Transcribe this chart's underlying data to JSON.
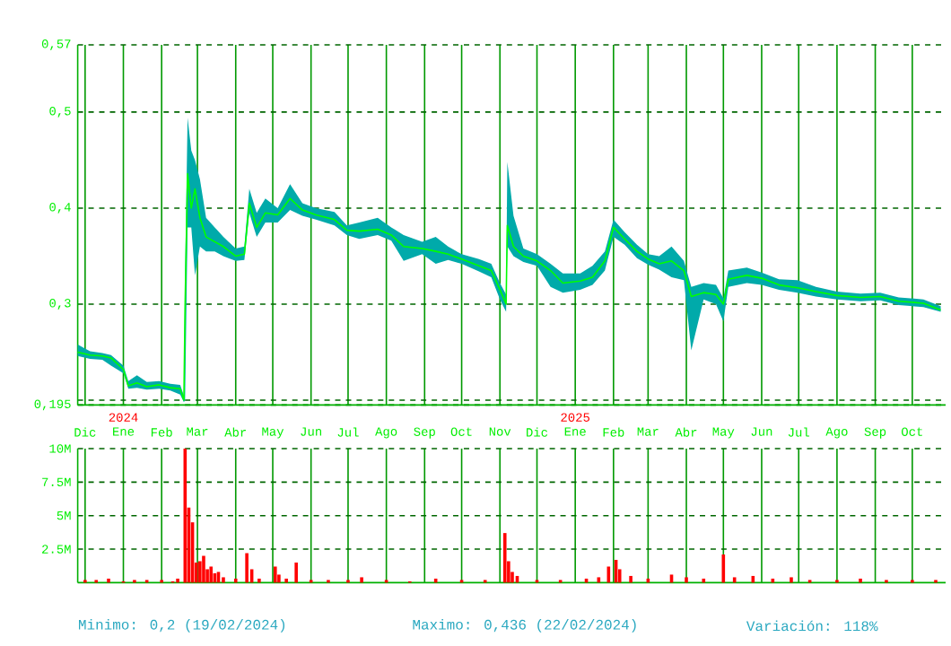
{
  "chart_data": [
    {
      "type": "line",
      "xlim": [
        "2023-11-25",
        "2025-10-28"
      ],
      "ylim": [
        0.195,
        0.57
      ],
      "xticks": [
        {
          "value": "2023-12-01",
          "label": "Dic"
        },
        {
          "value": "2024-01-01",
          "label": "Ene"
        },
        {
          "value": "2024-02-01",
          "label": "Feb"
        },
        {
          "value": "2024-03-01",
          "label": "Mar"
        },
        {
          "value": "2024-04-01",
          "label": "Abr"
        },
        {
          "value": "2024-05-01",
          "label": "May"
        },
        {
          "value": "2024-06-01",
          "label": "Jun"
        },
        {
          "value": "2024-07-01",
          "label": "Jul"
        },
        {
          "value": "2024-08-01",
          "label": "Ago"
        },
        {
          "value": "2024-09-01",
          "label": "Sep"
        },
        {
          "value": "2024-10-01",
          "label": "Oct"
        },
        {
          "value": "2024-11-01",
          "label": "Nov"
        },
        {
          "value": "2024-12-01",
          "label": "Dic"
        },
        {
          "value": "2025-01-01",
          "label": "Ene"
        },
        {
          "value": "2025-02-01",
          "label": "Feb"
        },
        {
          "value": "2025-03-01",
          "label": "Mar"
        },
        {
          "value": "2025-04-01",
          "label": "Abr"
        },
        {
          "value": "2025-05-01",
          "label": "May"
        },
        {
          "value": "2025-06-01",
          "label": "Jun"
        },
        {
          "value": "2025-07-01",
          "label": "Jul"
        },
        {
          "value": "2025-08-01",
          "label": "Ago"
        },
        {
          "value": "2025-09-01",
          "label": "Sep"
        },
        {
          "value": "2025-10-01",
          "label": "Oct"
        }
      ],
      "x2lim": [
        "2023-11-25",
        "2025-10-28"
      ],
      "x2ticks": [
        {
          "value": "2024-01-01",
          "label": "2024"
        },
        {
          "value": "2025-01-01",
          "label": "2025"
        }
      ],
      "yticks": [
        {
          "value": 0.195,
          "label": "0,195"
        },
        {
          "value": 0.2,
          "label": null
        },
        {
          "value": 0.3,
          "label": "0,3"
        },
        {
          "value": 0.4,
          "label": "0,4"
        },
        {
          "value": 0.5,
          "label": "0,5"
        },
        {
          "value": 0.57,
          "label": "0,57"
        }
      ],
      "grid": true,
      "x": [
        "2023-11-25",
        "2023-12-05",
        "2023-12-15",
        "2023-12-22",
        "2024-01-01",
        "2024-01-05",
        "2024-01-12",
        "2024-01-20",
        "2024-01-30",
        "2024-02-08",
        "2024-02-16",
        "2024-02-19",
        "2024-02-20",
        "2024-02-22",
        "2024-02-25",
        "2024-02-28",
        "2024-03-03",
        "2024-03-08",
        "2024-03-15",
        "2024-03-22",
        "2024-04-01",
        "2024-04-08",
        "2024-04-12",
        "2024-04-18",
        "2024-04-25",
        "2024-05-05",
        "2024-05-15",
        "2024-05-25",
        "2024-06-05",
        "2024-06-20",
        "2024-06-30",
        "2024-07-10",
        "2024-07-25",
        "2024-08-05",
        "2024-08-15",
        "2024-08-30",
        "2024-09-10",
        "2024-09-20",
        "2024-10-01",
        "2024-10-15",
        "2024-10-25",
        "2024-11-01",
        "2024-11-06",
        "2024-11-07",
        "2024-11-12",
        "2024-11-20",
        "2024-12-01",
        "2024-12-12",
        "2024-12-22",
        "2025-01-05",
        "2025-01-15",
        "2025-01-25",
        "2025-02-01",
        "2025-02-10",
        "2025-02-20",
        "2025-03-01",
        "2025-03-10",
        "2025-03-20",
        "2025-03-30",
        "2025-04-05",
        "2025-04-15",
        "2025-04-25",
        "2025-05-01",
        "2025-05-05",
        "2025-05-20",
        "2025-06-01",
        "2025-06-15",
        "2025-06-30",
        "2025-07-15",
        "2025-08-01",
        "2025-08-20",
        "2025-09-05",
        "2025-09-20",
        "2025-10-10",
        "2025-10-24"
      ],
      "series": [
        {
          "color": "#00ff00",
          "values": [
            0.25,
            0.247,
            0.246,
            0.244,
            0.232,
            0.215,
            0.218,
            0.214,
            0.216,
            0.213,
            0.212,
            0.2,
            0.3,
            0.436,
            0.4,
            0.42,
            0.39,
            0.37,
            0.365,
            0.36,
            0.35,
            0.352,
            0.405,
            0.38,
            0.395,
            0.393,
            0.41,
            0.398,
            0.393,
            0.388,
            0.377,
            0.376,
            0.378,
            0.372,
            0.36,
            0.358,
            0.355,
            0.352,
            0.347,
            0.34,
            0.335,
            0.315,
            0.3,
            0.382,
            0.36,
            0.35,
            0.345,
            0.335,
            0.322,
            0.324,
            0.328,
            0.345,
            0.38,
            0.368,
            0.355,
            0.347,
            0.342,
            0.345,
            0.335,
            0.308,
            0.312,
            0.31,
            0.3,
            0.326,
            0.33,
            0.327,
            0.32,
            0.317,
            0.313,
            0.309,
            0.307,
            0.308,
            0.303,
            0.301,
            0.294
          ],
          "lower": [
            0.246,
            0.243,
            0.242,
            0.236,
            0.228,
            0.212,
            0.213,
            0.211,
            0.212,
            0.21,
            0.206,
            0.198,
            0.2,
            0.38,
            0.38,
            0.33,
            0.36,
            0.355,
            0.355,
            0.35,
            0.345,
            0.346,
            0.395,
            0.37,
            0.385,
            0.385,
            0.398,
            0.392,
            0.388,
            0.382,
            0.372,
            0.368,
            0.372,
            0.366,
            0.345,
            0.352,
            0.342,
            0.346,
            0.342,
            0.334,
            0.328,
            0.305,
            0.292,
            0.36,
            0.35,
            0.344,
            0.34,
            0.318,
            0.312,
            0.315,
            0.32,
            0.335,
            0.37,
            0.362,
            0.348,
            0.341,
            0.336,
            0.328,
            0.325,
            0.252,
            0.305,
            0.3,
            0.282,
            0.318,
            0.322,
            0.32,
            0.315,
            0.312,
            0.308,
            0.305,
            0.303,
            0.304,
            0.299,
            0.297,
            0.292
          ],
          "upper": [
            0.258,
            0.251,
            0.249,
            0.247,
            0.236,
            0.22,
            0.226,
            0.219,
            0.22,
            0.217,
            0.216,
            0.205,
            0.33,
            0.494,
            0.46,
            0.45,
            0.43,
            0.39,
            0.38,
            0.37,
            0.358,
            0.36,
            0.42,
            0.395,
            0.41,
            0.4,
            0.425,
            0.405,
            0.4,
            0.396,
            0.382,
            0.385,
            0.39,
            0.38,
            0.372,
            0.365,
            0.37,
            0.36,
            0.352,
            0.347,
            0.342,
            0.322,
            0.31,
            0.448,
            0.392,
            0.358,
            0.352,
            0.342,
            0.332,
            0.332,
            0.34,
            0.355,
            0.388,
            0.375,
            0.362,
            0.352,
            0.35,
            0.36,
            0.345,
            0.318,
            0.322,
            0.32,
            0.306,
            0.335,
            0.338,
            0.333,
            0.326,
            0.325,
            0.318,
            0.313,
            0.311,
            0.312,
            0.307,
            0.305,
            0.298
          ]
        }
      ]
    },
    {
      "type": "bar",
      "xlim": [
        "2023-11-25",
        "2025-10-28"
      ],
      "ylim": [
        0,
        10000000
      ],
      "xticks": [
        {
          "value": "2023-12-01",
          "label": null
        },
        {
          "value": "2024-01-01",
          "label": null
        },
        {
          "value": "2024-02-01",
          "label": null
        },
        {
          "value": "2024-03-01",
          "label": null
        },
        {
          "value": "2024-04-01",
          "label": null
        },
        {
          "value": "2024-05-01",
          "label": null
        },
        {
          "value": "2024-06-01",
          "label": null
        },
        {
          "value": "2024-07-01",
          "label": null
        },
        {
          "value": "2024-08-01",
          "label": null
        },
        {
          "value": "2024-09-01",
          "label": null
        },
        {
          "value": "2024-10-01",
          "label": null
        },
        {
          "value": "2024-11-01",
          "label": null
        },
        {
          "value": "2024-12-01",
          "label": null
        },
        {
          "value": "2025-01-01",
          "label": null
        },
        {
          "value": "2025-02-01",
          "label": null
        },
        {
          "value": "2025-03-01",
          "label": null
        },
        {
          "value": "2025-04-01",
          "label": null
        },
        {
          "value": "2025-05-01",
          "label": null
        },
        {
          "value": "2025-06-01",
          "label": null
        },
        {
          "value": "2025-07-01",
          "label": null
        },
        {
          "value": "2025-08-01",
          "label": null
        },
        {
          "value": "2025-09-01",
          "label": null
        },
        {
          "value": "2025-10-01",
          "label": null
        }
      ],
      "yticks": [
        {
          "value": 2500000,
          "label": "2.5M"
        },
        {
          "value": 5000000,
          "label": "5M"
        },
        {
          "value": 7500000,
          "label": "7.5M"
        },
        {
          "value": 10000000,
          "label": "10M"
        }
      ],
      "grid": true,
      "tick_labels": "y",
      "annotations": [
        "Minimo: 0,2 (19/02/2024)",
        "Maximo: 0,436 (22/02/2024)",
        "Variación: 118%"
      ],
      "x": [
        "2023-12-01",
        "2023-12-10",
        "2023-12-20",
        "2024-01-01",
        "2024-01-10",
        "2024-01-20",
        "2024-02-01",
        "2024-02-10",
        "2024-02-14",
        "2024-02-20",
        "2024-02-23",
        "2024-02-26",
        "2024-02-29",
        "2024-03-03",
        "2024-03-06",
        "2024-03-09",
        "2024-03-12",
        "2024-03-15",
        "2024-03-18",
        "2024-03-22",
        "2024-04-01",
        "2024-04-10",
        "2024-04-14",
        "2024-04-20",
        "2024-05-03",
        "2024-05-06",
        "2024-05-12",
        "2024-05-20",
        "2024-06-01",
        "2024-06-15",
        "2024-07-01",
        "2024-07-12",
        "2024-08-01",
        "2024-08-20",
        "2024-09-10",
        "2024-10-01",
        "2024-10-20",
        "2024-11-05",
        "2024-11-08",
        "2024-11-11",
        "2024-11-15",
        "2024-12-01",
        "2024-12-20",
        "2025-01-10",
        "2025-01-20",
        "2025-01-28",
        "2025-02-03",
        "2025-02-06",
        "2025-02-15",
        "2025-03-01",
        "2025-03-20",
        "2025-04-01",
        "2025-04-15",
        "2025-05-01",
        "2025-05-10",
        "2025-05-25",
        "2025-06-10",
        "2025-06-25",
        "2025-07-10",
        "2025-08-01",
        "2025-08-20",
        "2025-09-10",
        "2025-10-01",
        "2025-10-20"
      ],
      "series": [
        {
          "color": "#ff0000",
          "values": [
            200000,
            200000,
            300000,
            100000,
            200000,
            200000,
            200000,
            100000,
            300000,
            10000000,
            5600000,
            4500000,
            1500000,
            1600000,
            2000000,
            1000000,
            1200000,
            700000,
            800000,
            400000,
            300000,
            2200000,
            1000000,
            300000,
            1200000,
            600000,
            300000,
            1500000,
            200000,
            200000,
            200000,
            400000,
            200000,
            100000,
            300000,
            200000,
            200000,
            3700000,
            1600000,
            800000,
            500000,
            200000,
            200000,
            300000,
            400000,
            1200000,
            1700000,
            1000000,
            500000,
            300000,
            600000,
            400000,
            300000,
            2100000,
            400000,
            500000,
            300000,
            400000,
            200000,
            200000,
            300000,
            200000,
            200000,
            200000
          ]
        }
      ]
    }
  ]
}
